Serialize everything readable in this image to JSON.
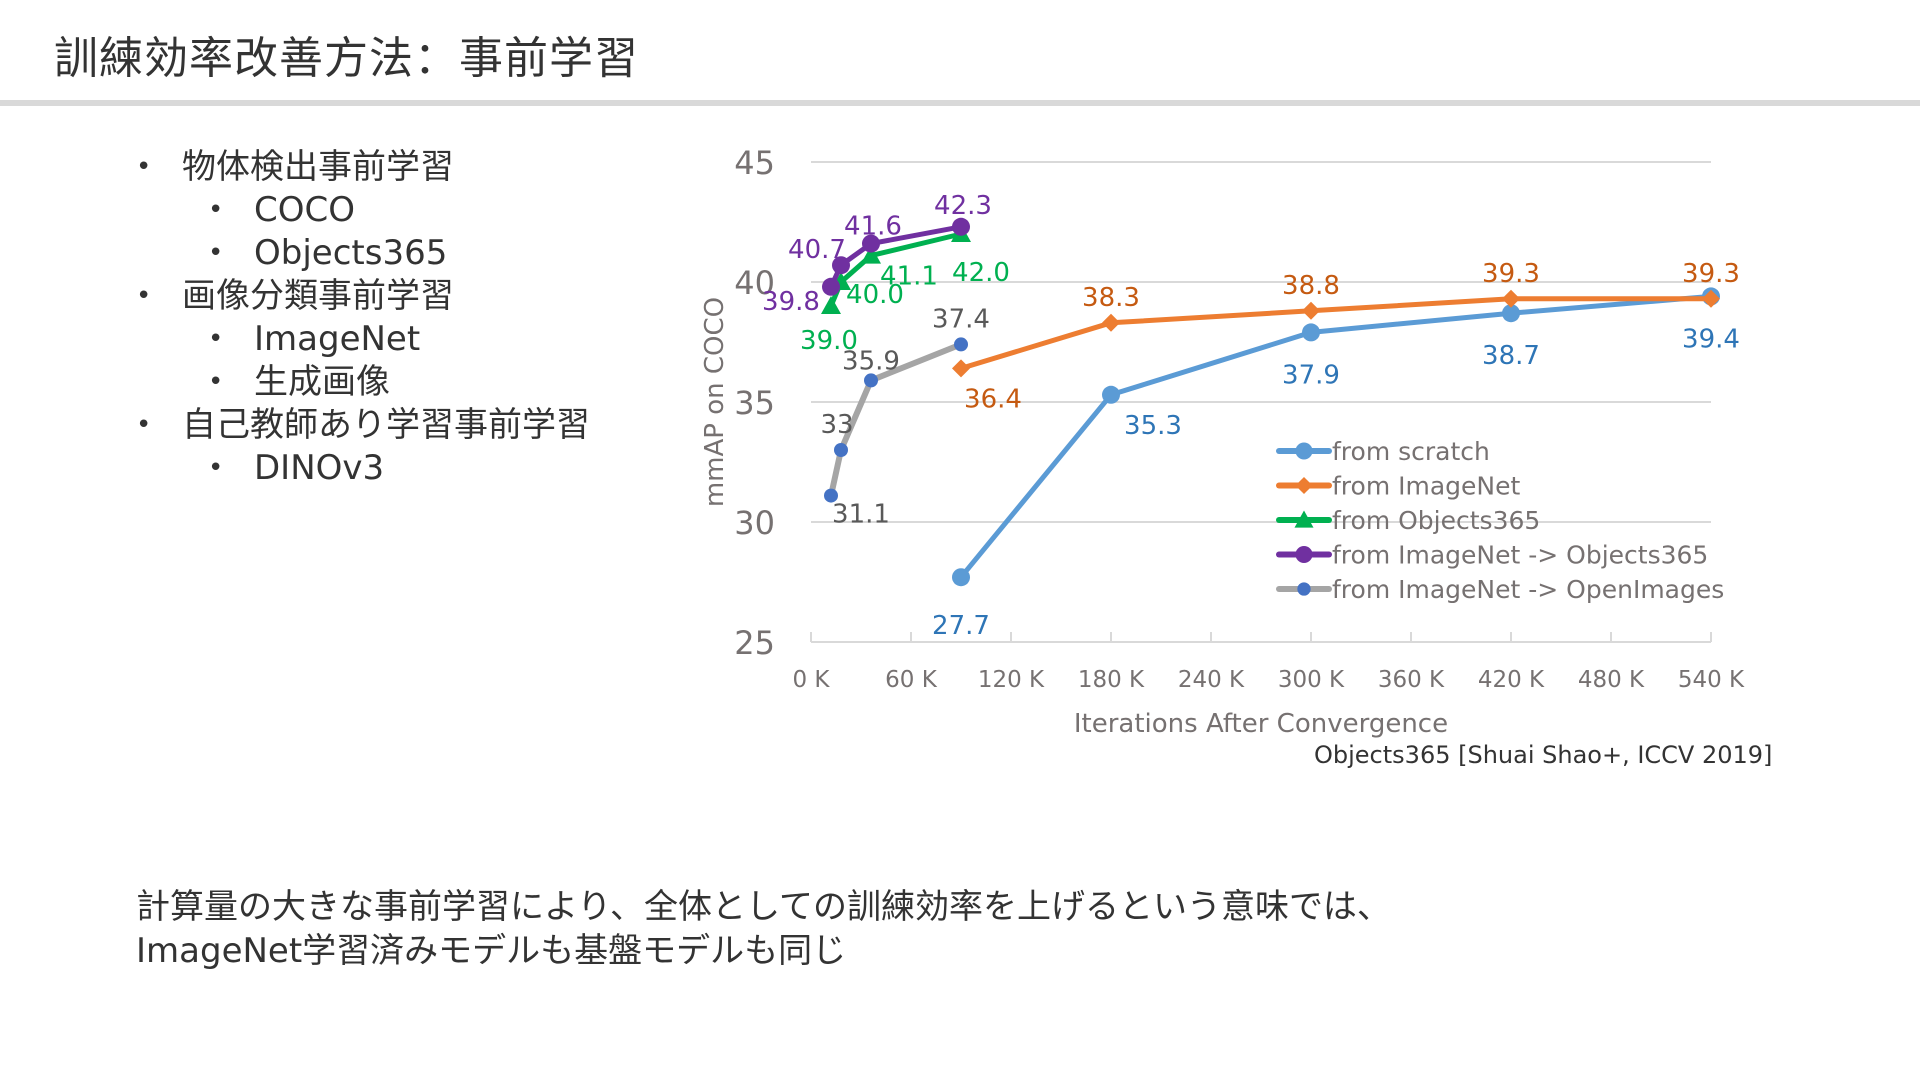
{
  "slide": {
    "title": "訓練効率改善方法：事前学習",
    "bullets": [
      {
        "level": 1,
        "text": "物体検出事前学習"
      },
      {
        "level": 2,
        "text": "COCO"
      },
      {
        "level": 2,
        "text": "Objects365"
      },
      {
        "level": 1,
        "text": "画像分類事前学習"
      },
      {
        "level": 2,
        "text": "ImageNet"
      },
      {
        "level": 2,
        "text": "生成画像"
      },
      {
        "level": 1,
        "text": "自己教師あり学習事前学習"
      },
      {
        "level": 2,
        "text": "DINOv3"
      }
    ],
    "citation": "Objects365 [Shuai Shao+, ICCV 2019]",
    "summary_line1": "計算量の大きな事前学習により、全体としての訓練効率を上げるという意味では、",
    "summary_line2": "ImageNet学習済みモデルも基盤モデルも同じ"
  },
  "chart_data": {
    "type": "line",
    "title": "",
    "xlabel": "Iterations After Convergence",
    "ylabel": "mmAP on COCO",
    "xlim": [
      0,
      540
    ],
    "ylim": [
      25,
      45
    ],
    "x_unit": "K",
    "xticks": [
      0,
      60,
      120,
      180,
      240,
      300,
      360,
      420,
      480,
      540
    ],
    "xtick_labels": [
      "0 K",
      "60 K",
      "120 K",
      "180 K",
      "240 K",
      "300 K",
      "360 K",
      "420 K",
      "480 K",
      "540 K"
    ],
    "yticks": [
      25,
      30,
      35,
      40,
      45
    ],
    "ytick_labels": [
      "25",
      "30",
      "35",
      "40",
      "45"
    ],
    "grid": true,
    "legend_position": "lower-right",
    "series": [
      {
        "name": "from scratch",
        "color": "#5b9bd5",
        "label_color": "#2e75b6",
        "marker": "circle",
        "x": [
          90,
          180,
          300,
          420,
          540
        ],
        "values": [
          27.7,
          35.3,
          37.9,
          38.7,
          39.4
        ],
        "labels": [
          "27.7",
          "35.3",
          "37.9",
          "38.7",
          "39.4"
        ],
        "label_pos": "below"
      },
      {
        "name": "from ImageNet",
        "color": "#ed7d31",
        "label_color": "#c55a11",
        "marker": "diamond",
        "x": [
          90,
          180,
          300,
          420,
          540
        ],
        "values": [
          36.4,
          38.3,
          38.8,
          39.3,
          39.3
        ],
        "labels": [
          "36.4",
          "38.3",
          "38.8",
          "39.3",
          "39.3"
        ],
        "label_pos": "above"
      },
      {
        "name": "from Objects365",
        "color": "#00b050",
        "label_color": "#00b050",
        "marker": "triangle",
        "x": [
          12,
          18,
          36,
          90
        ],
        "values": [
          39.0,
          40.0,
          41.1,
          42.0
        ],
        "labels": [
          "39.0",
          "40.0",
          "41.1",
          "42.0"
        ],
        "label_pos": "below-right"
      },
      {
        "name": "from ImageNet -> Objects365",
        "color": "#7030a0",
        "label_color": "#7030a0",
        "marker": "circle",
        "x": [
          12,
          18,
          36,
          90
        ],
        "values": [
          39.8,
          40.7,
          41.6,
          42.3
        ],
        "labels": [
          "39.8",
          "40.7",
          "41.6",
          "42.3"
        ],
        "label_pos": "above-left"
      },
      {
        "name": "from ImageNet -> OpenImages",
        "color": "#a5a5a5",
        "label_color": "#595959",
        "marker": "small-circle",
        "marker_color": "#4472c4",
        "x": [
          12,
          18,
          36,
          90
        ],
        "values": [
          31.1,
          33,
          35.9,
          37.4
        ],
        "labels": [
          "31.1",
          "33",
          "35.9",
          "37.4"
        ],
        "label_pos": "mixed"
      }
    ]
  }
}
